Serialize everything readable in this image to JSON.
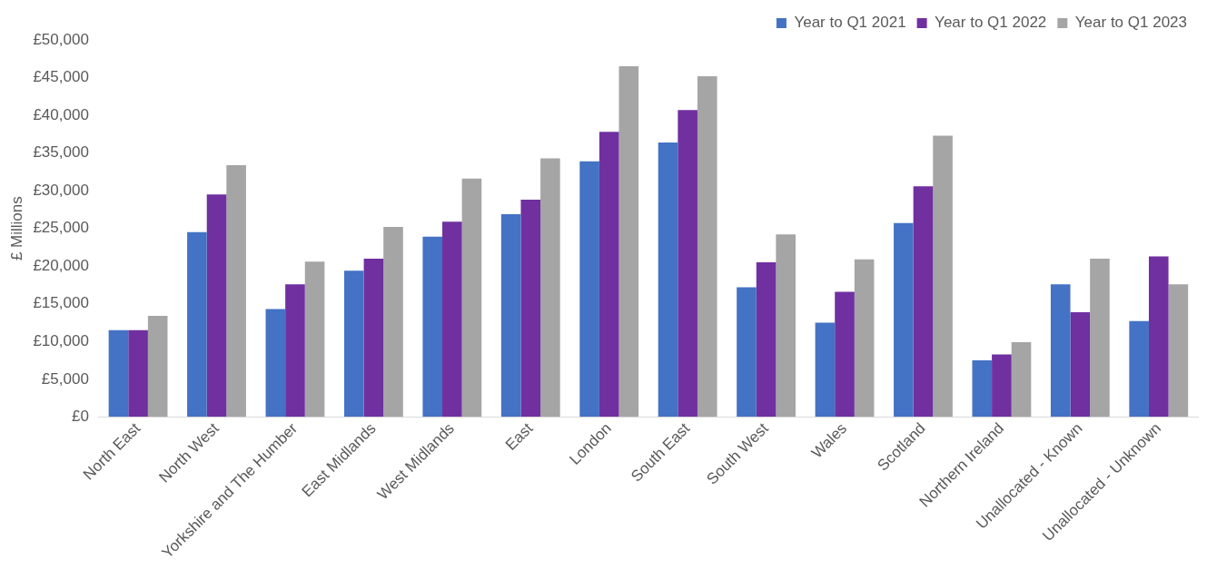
{
  "chart_data": {
    "type": "bar",
    "ylabel": "£ Millions",
    "categories": [
      "North East",
      "North West",
      "Yorkshire and The Humber",
      "East Midlands",
      "West Midlands",
      "East",
      "London",
      "South East",
      "South West",
      "Wales",
      "Scotland",
      "Northern Ireland",
      "Unallocated - Known",
      "Unallocated - Unknown"
    ],
    "series": [
      {
        "name": "Year to Q1 2021",
        "color": "#4472c4",
        "values": [
          11500,
          24500,
          14300,
          19400,
          23900,
          26900,
          33900,
          36400,
          17200,
          12500,
          25700,
          7500,
          17600,
          12700
        ]
      },
      {
        "name": "Year to Q1 2022",
        "color": "#7030a0",
        "values": [
          11500,
          29500,
          17600,
          21000,
          25900,
          28800,
          37800,
          40700,
          20500,
          16600,
          30600,
          8300,
          13900,
          21300
        ]
      },
      {
        "name": "Year to Q1 2023",
        "color": "#a5a5a5",
        "values": [
          13400,
          33400,
          20600,
          25200,
          31600,
          34300,
          46500,
          45200,
          24200,
          20900,
          37300,
          9900,
          21000,
          17600
        ]
      }
    ],
    "ylim": [
      0,
      50000
    ],
    "yticks": [
      {
        "value": 0,
        "label": "£0"
      },
      {
        "value": 5000,
        "label": "£5,000"
      },
      {
        "value": 10000,
        "label": "£10,000"
      },
      {
        "value": 15000,
        "label": "£15,000"
      },
      {
        "value": 20000,
        "label": "£20,000"
      },
      {
        "value": 25000,
        "label": "£25,000"
      },
      {
        "value": 30000,
        "label": "£30,000"
      },
      {
        "value": 35000,
        "label": "£35,000"
      },
      {
        "value": 40000,
        "label": "£40,000"
      },
      {
        "value": 45000,
        "label": "£45,000"
      },
      {
        "value": 50000,
        "label": "£50,000"
      }
    ],
    "grid": false,
    "legend": "top right"
  }
}
